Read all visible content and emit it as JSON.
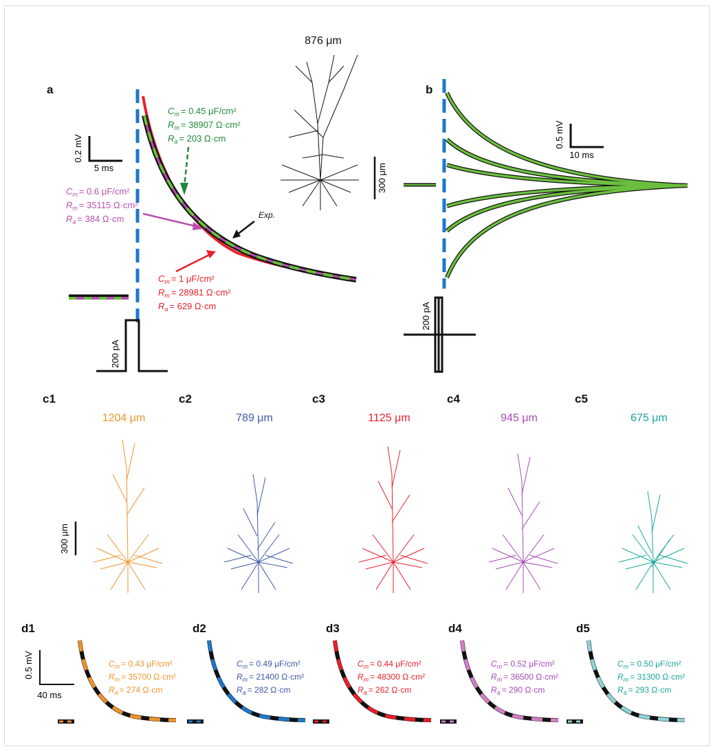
{
  "colors": {
    "blue": "#1f78c8",
    "green_dark": "#1f8a3b",
    "green_light": "#6cbf3e",
    "magenta": "#b84fb0",
    "red": "#e8202a",
    "black": "#111111",
    "orange": "#f0932a",
    "navy": "#3f58a8",
    "purple": "#a64ab5",
    "teal": "#1aa69c",
    "cyan_light": "#8fd3d8",
    "pink": "#d47fc6"
  },
  "panel_a": {
    "label": "a",
    "scale_mv": "0.2 mV",
    "scale_ms": "5 ms",
    "current_label": "200 pA",
    "exp_label": "Exp.",
    "green_fit": {
      "cm": "= 0.45 μF/cm²",
      "rm": "= 38907 Ω·cm²",
      "ra": "= 203 Ω·cm"
    },
    "magenta_fit": {
      "cm": "= 0.6 μF/cm²",
      "rm": "= 35115 Ω·cm²",
      "ra": "= 384 Ω·cm"
    },
    "red_fit": {
      "cm": "= 1 μF/cm²",
      "rm": "= 28981 Ω·cm²",
      "ra": "= 629 Ω·cm"
    },
    "morph_length": "876 μm",
    "morph_scale": "300 μm"
  },
  "panel_b": {
    "label": "b",
    "scale_mv": "0.5 mV",
    "scale_ms": "10 ms",
    "current_label": "200 pA"
  },
  "symbols": {
    "C": "C",
    "R": "R",
    "m": "m",
    "a": "a"
  },
  "panel_c": {
    "scale": "300 μm",
    "neurons": [
      {
        "label": "c1",
        "length": "1204 μm",
        "color": "#f0932a"
      },
      {
        "label": "c2",
        "length": "789 μm",
        "color": "#3f58a8"
      },
      {
        "label": "c3",
        "length": "1125 μm",
        "color": "#e8202a"
      },
      {
        "label": "c4",
        "length": "945 μm",
        "color": "#a64ab5"
      },
      {
        "label": "c5",
        "length": "675 μm",
        "color": "#1aa69c"
      }
    ]
  },
  "panel_d": {
    "scale_mv": "0.5 mV",
    "scale_ms": "40 ms",
    "fits": [
      {
        "label": "d1",
        "cm": "= 0.43 μF/cm²",
        "rm": "= 35700 Ω·cm²",
        "ra": "= 274 Ω·cm",
        "color": "#f0932a",
        "dash": "#f0932a"
      },
      {
        "label": "d2",
        "cm": "= 0.49 μF/cm²",
        "rm": "= 21400 Ω·cm²",
        "ra": "= 282 Ω·cm",
        "color": "#3f58a8",
        "dash": "#1f78c8"
      },
      {
        "label": "d3",
        "cm": "= 0.44 μF/cm²",
        "rm": "= 48300 Ω·cm²",
        "ra": "= 262 Ω·cm",
        "color": "#e8202a",
        "dash": "#e8202a"
      },
      {
        "label": "d4",
        "cm": "= 0.52 μF/cm²",
        "rm": "= 36500 Ω·cm²",
        "ra": "= 290 Ω·cm",
        "color": "#a64ab5",
        "dash": "#d47fc6"
      },
      {
        "label": "d5",
        "cm": "= 0.50 μF/cm²",
        "rm": "= 31300 Ω·cm²",
        "ra": "= 293 Ω·cm",
        "color": "#1aa69c",
        "dash": "#8fd3d8"
      }
    ]
  }
}
